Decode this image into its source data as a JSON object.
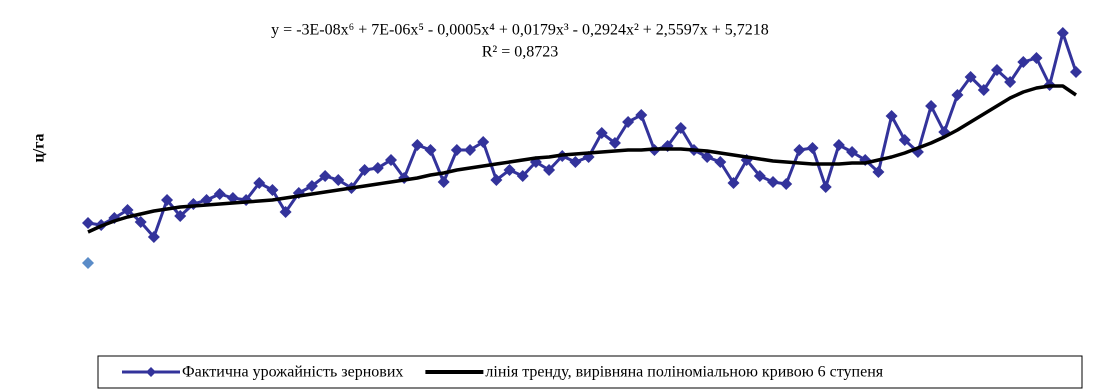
{
  "chart_data": {
    "type": "line",
    "y_label": "ц/га",
    "annotations": [
      "y = -3E-08x⁶ + 7E-06x⁵ - 0,0005x⁴ + 0,0179x³ - 0,2924x² + 2,5597x + 5,7218",
      "R² = 0,8723"
    ],
    "x": [
      1,
      2,
      3,
      4,
      5,
      6,
      7,
      8,
      9,
      10,
      11,
      12,
      13,
      14,
      15,
      16,
      17,
      18,
      19,
      20,
      21,
      22,
      23,
      24,
      25,
      26,
      27,
      28,
      29,
      30,
      31,
      32,
      33,
      34,
      35,
      36,
      37,
      38,
      39,
      40,
      41,
      42,
      43,
      44,
      45,
      46,
      47,
      48,
      49,
      50,
      51,
      52,
      53,
      54,
      55,
      56,
      57,
      58,
      59,
      60,
      61,
      62,
      63,
      64,
      65,
      66,
      67,
      68,
      69,
      70,
      71,
      72,
      73,
      74,
      75,
      76
    ],
    "xlim": [
      1,
      76
    ],
    "ylim": [
      0,
      30
    ],
    "series": [
      {
        "name": "Фактична урожайність зернових",
        "color": "#33339b",
        "marker": "diamond",
        "values": [
          7.7,
          7.5,
          8.2,
          9.0,
          7.8,
          6.3,
          10.0,
          8.4,
          9.6,
          10.0,
          10.6,
          10.2,
          10.0,
          11.7,
          11.0,
          8.8,
          10.7,
          11.4,
          12.4,
          12.0,
          11.2,
          13.0,
          13.2,
          14.0,
          12.2,
          15.5,
          15.0,
          11.8,
          15.0,
          15.0,
          15.8,
          12.0,
          13.0,
          12.4,
          13.8,
          13.0,
          14.4,
          13.8,
          14.3,
          16.7,
          15.7,
          17.8,
          18.5,
          15.0,
          15.4,
          17.2,
          15.0,
          14.3,
          13.8,
          11.7,
          14.0,
          12.4,
          11.8,
          11.6,
          15.0,
          15.2,
          11.3,
          15.5,
          14.8,
          14.0,
          12.8,
          18.4,
          16.0,
          14.8,
          19.4,
          16.8,
          20.5,
          22.3,
          21.0,
          23.0,
          21.8,
          23.8,
          24.2,
          21.5,
          26.7,
          22.8
        ]
      },
      {
        "name": "лінія тренду, вирівняна поліноміальною кривою 6 ступеня",
        "color": "#000000",
        "marker": "none",
        "values": [
          6.8,
          7.4,
          7.9,
          8.3,
          8.6,
          8.9,
          9.1,
          9.3,
          9.4,
          9.5,
          9.6,
          9.7,
          9.8,
          9.9,
          10.0,
          10.2,
          10.4,
          10.6,
          10.8,
          11.0,
          11.2,
          11.4,
          11.6,
          11.8,
          12.0,
          12.2,
          12.5,
          12.7,
          13.0,
          13.2,
          13.4,
          13.6,
          13.8,
          14.0,
          14.2,
          14.3,
          14.5,
          14.6,
          14.7,
          14.8,
          14.9,
          15.0,
          15.0,
          15.1,
          15.1,
          15.1,
          15.0,
          14.9,
          14.7,
          14.5,
          14.3,
          14.1,
          13.9,
          13.8,
          13.7,
          13.6,
          13.6,
          13.6,
          13.7,
          13.7,
          14.0,
          14.3,
          14.7,
          15.2,
          15.7,
          16.3,
          17.0,
          17.8,
          18.6,
          19.4,
          20.2,
          20.8,
          21.2,
          21.4,
          21.4,
          20.5
        ]
      },
      {
        "color": "#5b8cc8",
        "marker": "diamond",
        "x": [
          1
        ],
        "values": [
          3.7
        ]
      }
    ]
  }
}
